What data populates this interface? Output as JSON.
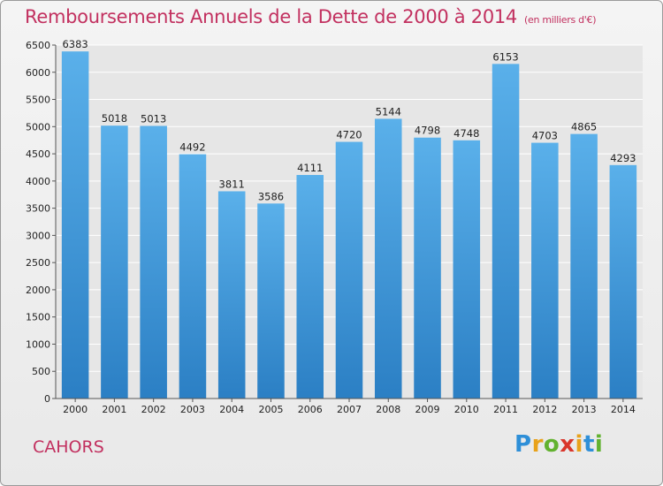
{
  "header": {
    "title": "Remboursements Annuels de la Dette de 2000 à 2014",
    "subtitle": "(en milliers d'€)"
  },
  "footer": {
    "city": "CAHORS",
    "logo_letters": [
      "P",
      "r",
      "o",
      "x",
      "i",
      "t",
      "i"
    ],
    "logo_colors": [
      "#2e8fd8",
      "#e8a21b",
      "#62b22f",
      "#d9362b",
      "#e8a21b",
      "#2e8fd8",
      "#62b22f"
    ]
  },
  "chart_data": {
    "type": "bar",
    "title": "Remboursements Annuels de la Dette de 2000 à 2014",
    "xlabel": "",
    "ylabel": "",
    "categories": [
      "2000",
      "2001",
      "2002",
      "2003",
      "2004",
      "2005",
      "2006",
      "2007",
      "2008",
      "2009",
      "2010",
      "2011",
      "2012",
      "2013",
      "2014"
    ],
    "values": [
      6383,
      5018,
      5013,
      4492,
      3811,
      3586,
      4111,
      4720,
      5144,
      4798,
      4748,
      6153,
      4703,
      4865,
      4293
    ],
    "ylim": [
      0,
      6500
    ],
    "yticks": [
      0,
      500,
      1000,
      1500,
      2000,
      2500,
      3000,
      3500,
      4000,
      4500,
      5000,
      5500,
      6000,
      6500
    ],
    "grid": true,
    "colors": {
      "bar_top": "#5ab0ea",
      "bar_bottom": "#2b7fc4",
      "grid": "#ffffff"
    }
  }
}
